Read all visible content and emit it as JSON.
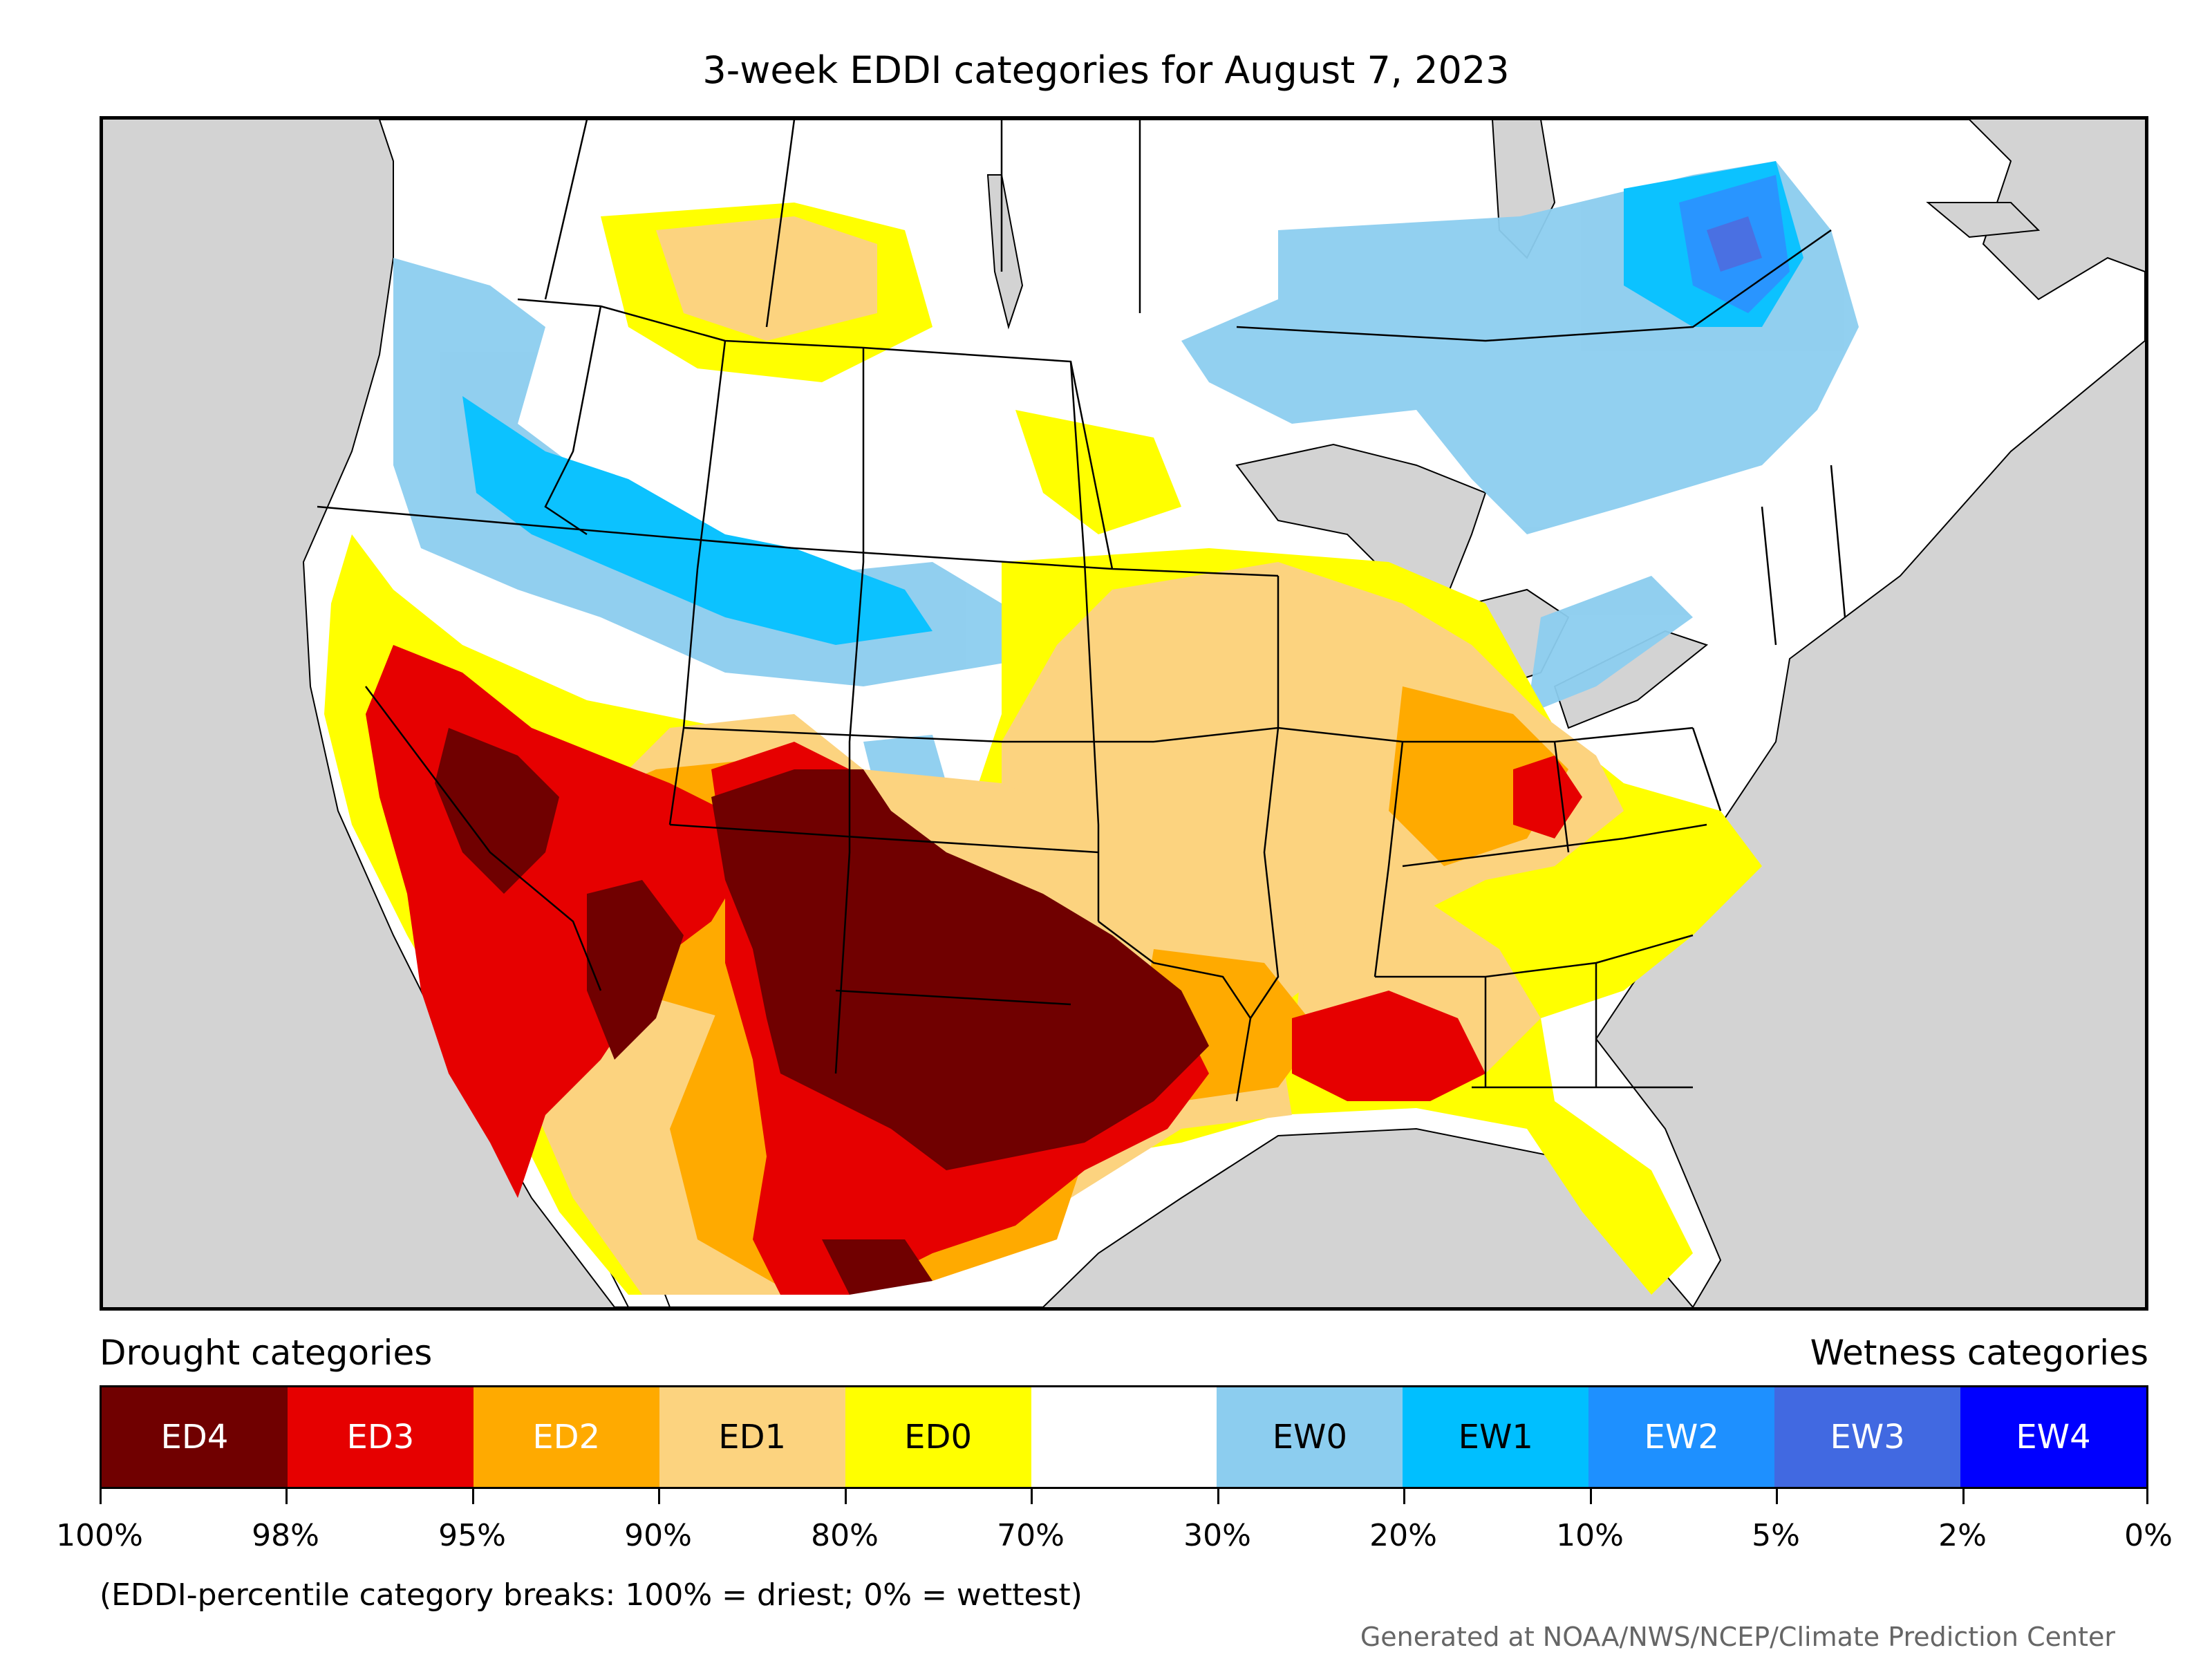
{
  "title": "3-week EDDI categories for August 7, 2023",
  "legend": {
    "drought_title": "Drought categories",
    "wetness_title": "Wetness categories",
    "categories": [
      {
        "label": "ED4",
        "color": "#700000",
        "text_color": "#ffffff"
      },
      {
        "label": "ED3",
        "color": "#e60000",
        "text_color": "#ffffff"
      },
      {
        "label": "ED2",
        "color": "#ffaa00",
        "text_color": "#ffffff"
      },
      {
        "label": "ED1",
        "color": "#fcd37f",
        "text_color": "#000000"
      },
      {
        "label": "ED0",
        "color": "#ffff00",
        "text_color": "#000000"
      },
      {
        "label": "",
        "color": "#ffffff",
        "text_color": "#000000"
      },
      {
        "label": "EW0",
        "color": "#8ccdef",
        "text_color": "#000000"
      },
      {
        "label": "EW1",
        "color": "#00bfff",
        "text_color": "#000000"
      },
      {
        "label": "EW2",
        "color": "#1e90ff",
        "text_color": "#ffffff"
      },
      {
        "label": "EW3",
        "color": "#4169e1",
        "text_color": "#ffffff"
      },
      {
        "label": "EW4",
        "color": "#0000ff",
        "text_color": "#ffffff"
      }
    ],
    "breaks": [
      "100%",
      "98%",
      "95%",
      "90%",
      "80%",
      "70%",
      "30%",
      "20%",
      "10%",
      "5%",
      "2%",
      "0%"
    ]
  },
  "footnote": "(EDDI-percentile category breaks: 100% = driest; 0% = wettest)",
  "credit": "Generated at NOAA/NWS/NCEP/Climate Prediction Center",
  "map": {
    "ocean_color": "#d3d3d3",
    "land_color": "#ffffff"
  }
}
